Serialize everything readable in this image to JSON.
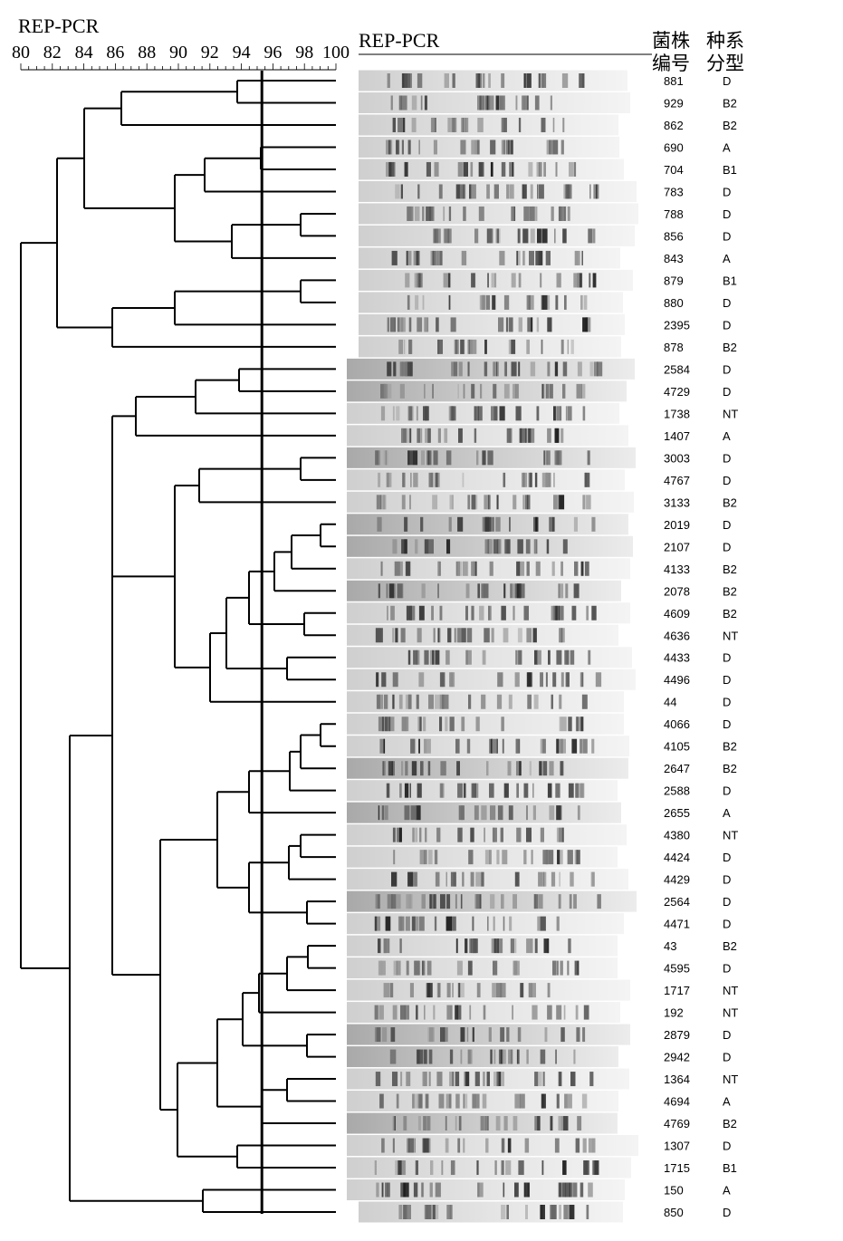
{
  "method": "REP-PCR",
  "scale": {
    "ticks": [
      "80",
      "82",
      "84",
      "86",
      "88",
      "90",
      "92",
      "94",
      "96",
      "98",
      "100"
    ],
    "cutoff": 95.3
  },
  "columns": {
    "strain": [
      "菌株",
      "编号"
    ],
    "group": [
      "种系",
      "分型"
    ]
  },
  "strains": [
    {
      "id": "881",
      "group": "D"
    },
    {
      "id": "929",
      "group": "B2"
    },
    {
      "id": "862",
      "group": "B2"
    },
    {
      "id": "690",
      "group": "A"
    },
    {
      "id": "704",
      "group": "B1"
    },
    {
      "id": "783",
      "group": "D"
    },
    {
      "id": "788",
      "group": "D"
    },
    {
      "id": "856",
      "group": "D"
    },
    {
      "id": "843",
      "group": "A"
    },
    {
      "id": "879",
      "group": "B1"
    },
    {
      "id": "880",
      "group": "D"
    },
    {
      "id": "2395",
      "group": "D"
    },
    {
      "id": "878",
      "group": "B2"
    },
    {
      "id": "2584",
      "group": "D"
    },
    {
      "id": "4729",
      "group": "D"
    },
    {
      "id": "1738",
      "group": "NT"
    },
    {
      "id": "1407",
      "group": "A"
    },
    {
      "id": "3003",
      "group": "D"
    },
    {
      "id": "4767",
      "group": "D"
    },
    {
      "id": "3133",
      "group": "B2"
    },
    {
      "id": "2019",
      "group": "D"
    },
    {
      "id": "2107",
      "group": "D"
    },
    {
      "id": "4133",
      "group": "B2"
    },
    {
      "id": "2078",
      "group": "B2"
    },
    {
      "id": "4609",
      "group": "B2"
    },
    {
      "id": "4636",
      "group": "NT"
    },
    {
      "id": "4433",
      "group": "D"
    },
    {
      "id": "4496",
      "group": "D"
    },
    {
      "id": "44",
      "group": "D"
    },
    {
      "id": "4066",
      "group": "D"
    },
    {
      "id": "4105",
      "group": "B2"
    },
    {
      "id": "2647",
      "group": "B2"
    },
    {
      "id": "2588",
      "group": "D"
    },
    {
      "id": "2655",
      "group": "A"
    },
    {
      "id": "4380",
      "group": "NT"
    },
    {
      "id": "4424",
      "group": "D"
    },
    {
      "id": "4429",
      "group": "D"
    },
    {
      "id": "2564",
      "group": "D"
    },
    {
      "id": "4471",
      "group": "D"
    },
    {
      "id": "43",
      "group": "B2"
    },
    {
      "id": "4595",
      "group": "D"
    },
    {
      "id": "1717",
      "group": "NT"
    },
    {
      "id": "192",
      "group": "NT"
    },
    {
      "id": "2879",
      "group": "D"
    },
    {
      "id": "2942",
      "group": "D"
    },
    {
      "id": "1364",
      "group": "NT"
    },
    {
      "id": "4694",
      "group": "A"
    },
    {
      "id": "4769",
      "group": "B2"
    },
    {
      "id": "1307",
      "group": "D"
    },
    {
      "id": "1715",
      "group": "B1"
    },
    {
      "id": "150",
      "group": "A"
    },
    {
      "id": "850",
      "group": "D"
    }
  ]
}
